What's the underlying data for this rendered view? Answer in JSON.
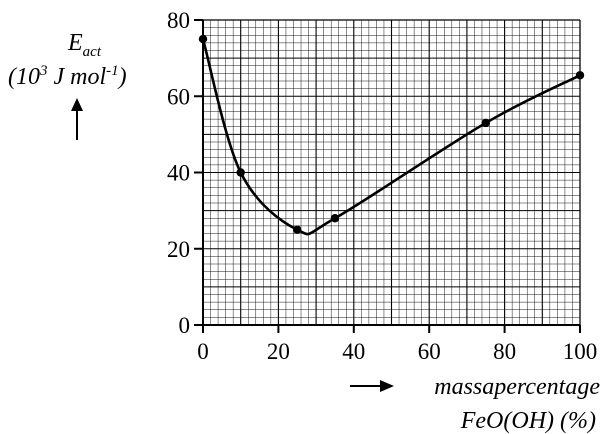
{
  "chart_data": {
    "type": "line",
    "x": [
      0,
      10,
      25,
      35,
      75,
      100
    ],
    "y": [
      75,
      40,
      25,
      28,
      53,
      65.5
    ],
    "curve": "smooth",
    "markers": true,
    "xlim": [
      0,
      100
    ],
    "ylim": [
      0,
      80
    ],
    "xticks": [
      0,
      20,
      40,
      60,
      80,
      100
    ],
    "yticks": [
      0,
      20,
      40,
      60,
      80
    ],
    "grid": true,
    "minor_grid_step_x": 2,
    "minor_grid_step_y": 2,
    "major_grid_step_x": 10,
    "major_grid_step_y": 10,
    "ylabel": {
      "symbol": "E",
      "symbol_sub": "act",
      "unit_open": "(10",
      "unit_sup": "3",
      "unit_mid": " J mol",
      "unit_sup2": "-1",
      "unit_close": ")",
      "arrow": "↑"
    },
    "xlabel": {
      "arrow": "⟶",
      "line1": "massapercentage",
      "line2": "FeO(OH) (%)"
    },
    "colors": {
      "line": "#000000",
      "grid": "#000000",
      "background": "#ffffff"
    }
  }
}
